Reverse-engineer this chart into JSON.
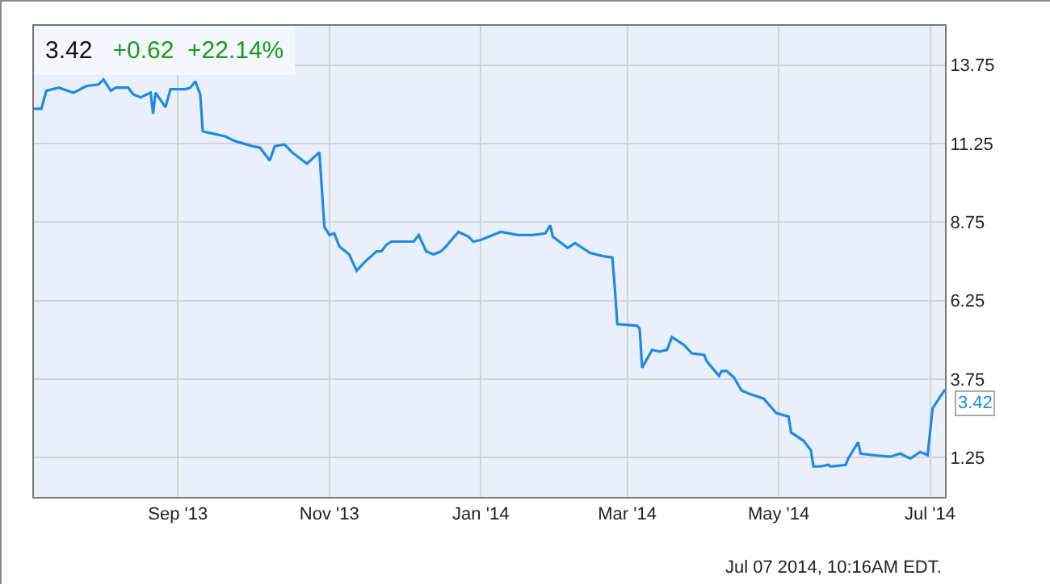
{
  "chart_data": {
    "type": "line",
    "title": "3.42",
    "subtitle": "+0.62  +22.14%",
    "x": [
      "2013-07-05",
      "2013-07-08",
      "2013-07-10",
      "2013-07-15",
      "2013-07-21",
      "2013-07-26",
      "2013-07-31",
      "2013-08-02",
      "2013-08-05",
      "2013-08-07",
      "2013-08-12",
      "2013-08-14",
      "2013-08-17",
      "2013-08-21",
      "2013-08-22",
      "2013-08-23",
      "2013-08-27",
      "2013-08-29",
      "2013-09-04",
      "2013-09-06",
      "2013-09-08",
      "2013-09-10",
      "2013-09-11",
      "2013-09-20",
      "2013-09-24",
      "2013-10-01",
      "2013-10-04",
      "2013-10-08",
      "2013-10-10",
      "2013-10-14",
      "2013-10-17",
      "2013-10-23",
      "2013-10-25",
      "2013-10-28",
      "2013-10-30",
      "2013-11-01",
      "2013-11-03",
      "2013-11-05",
      "2013-11-09",
      "2013-11-12",
      "2013-11-15",
      "2013-11-20",
      "2013-11-22",
      "2013-11-24",
      "2013-11-26",
      "2013-12-05",
      "2013-12-07",
      "2013-12-10",
      "2013-12-13",
      "2013-12-16",
      "2013-12-18",
      "2013-12-23",
      "2013-12-27",
      "2013-12-29",
      "2014-01-01",
      "2014-01-09",
      "2014-01-16",
      "2014-01-22",
      "2014-01-27",
      "2014-01-29",
      "2014-01-30",
      "2014-02-05",
      "2014-02-08",
      "2014-02-14",
      "2014-02-19",
      "2014-02-23",
      "2014-02-24",
      "2014-02-25",
      "2014-03-05",
      "2014-03-06",
      "2014-03-07",
      "2014-03-11",
      "2014-03-14",
      "2014-03-17",
      "2014-03-19",
      "2014-03-24",
      "2014-03-27",
      "2014-04-01",
      "2014-04-02",
      "2014-04-07",
      "2014-04-08",
      "2014-04-10",
      "2014-04-13",
      "2014-04-16",
      "2014-04-19",
      "2014-04-25",
      "2014-04-30",
      "2014-05-05",
      "2014-05-06",
      "2014-05-11",
      "2014-05-14",
      "2014-05-15",
      "2014-05-18",
      "2014-05-21",
      "2014-05-22",
      "2014-05-28",
      "2014-05-29",
      "2014-06-02",
      "2014-06-03",
      "2014-06-08",
      "2014-06-15",
      "2014-06-19",
      "2014-06-23",
      "2014-06-27",
      "2014-06-30",
      "2014-07-02",
      "2014-07-07"
    ],
    "series": [
      {
        "color": "#1f8ae6",
        "values": [
          12.36,
          12.36,
          12.93,
          13.03,
          12.87,
          13.08,
          13.13,
          13.29,
          12.93,
          13.03,
          13.03,
          12.82,
          12.72,
          12.87,
          12.2,
          12.87,
          12.41,
          12.98,
          12.98,
          13.03,
          13.23,
          12.82,
          11.64,
          11.48,
          11.33,
          11.17,
          11.12,
          10.71,
          11.17,
          11.22,
          10.97,
          10.61,
          10.76,
          10.97,
          8.6,
          8.34,
          8.39,
          7.98,
          7.72,
          7.2,
          7.46,
          7.82,
          7.82,
          8.03,
          8.13,
          8.13,
          8.34,
          7.82,
          7.72,
          7.82,
          7.98,
          8.44,
          8.29,
          8.13,
          8.18,
          8.44,
          8.34,
          8.34,
          8.39,
          8.65,
          8.29,
          7.93,
          8.08,
          7.77,
          7.67,
          7.62,
          6.65,
          5.5,
          5.45,
          5.35,
          4.11,
          4.68,
          4.63,
          4.68,
          5.09,
          4.83,
          4.57,
          4.52,
          4.32,
          3.85,
          4.01,
          4.01,
          3.8,
          3.39,
          3.29,
          3.13,
          2.67,
          2.56,
          2.05,
          1.79,
          1.48,
          0.97,
          0.97,
          1.02,
          0.97,
          1.02,
          1.22,
          1.74,
          1.38,
          1.33,
          1.28,
          1.38,
          1.22,
          1.43,
          1.33,
          2.82,
          3.42
        ]
      }
    ],
    "annotations": [
      {
        "text": "3.42",
        "x": "2014-07-07",
        "y": 3.42
      },
      "Jul 07 2014, 10:16AM EDT."
    ],
    "xlim": [
      "2013-07-05",
      "2014-07-07"
    ],
    "xticks": [
      {
        "value": "2013-09-01",
        "label": "Sep '13"
      },
      {
        "value": "2013-11-01",
        "label": "Nov '13"
      },
      {
        "value": "2014-01-01",
        "label": "Jan '14"
      },
      {
        "value": "2014-03-01",
        "label": "Mar '14"
      },
      {
        "value": "2014-05-01",
        "label": "May '14"
      },
      {
        "value": "2014-07-01",
        "label": "Jul '14"
      }
    ],
    "ylim": [
      0,
      15
    ],
    "yticks": [
      1.25,
      3.75,
      6.25,
      8.75,
      11.25,
      13.75
    ],
    "grid": true,
    "marker": "none",
    "line_style": "solid"
  }
}
